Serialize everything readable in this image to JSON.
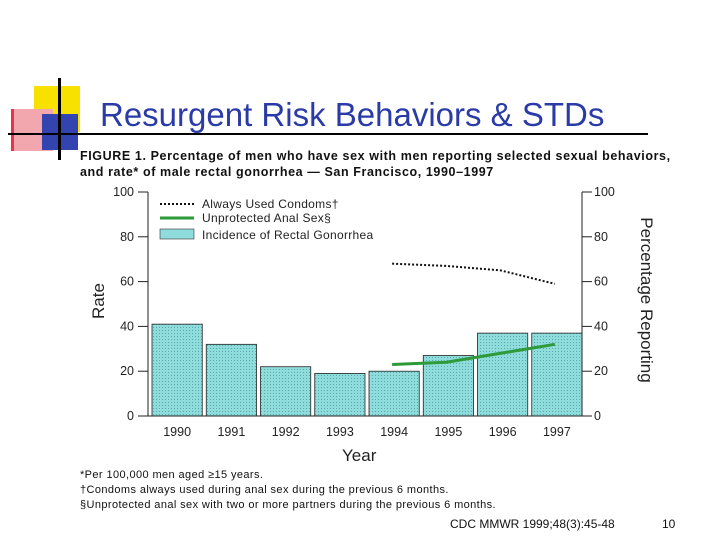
{
  "slide": {
    "title": "Resurgent Risk Behaviors & STDs",
    "source": "CDC MMWR 1999;48(3):45-48",
    "slide_number": "10"
  },
  "figure": {
    "title": "FIGURE 1. Percentage of men who have sex with men reporting selected sexual behaviors, and rate* of male rectal gonorrhea — San Francisco, 1990–1997",
    "footnotes": [
      "*Per 100,000 men aged ≥15 years.",
      "†Condoms always used during anal sex during the previous 6 months.",
      "§Unprotected anal sex with two or more partners during the previous 6 months."
    ]
  },
  "chart_data": {
    "type": "bar",
    "categories": [
      "1990",
      "1991",
      "1992",
      "1993",
      "1994",
      "1995",
      "1996",
      "1997"
    ],
    "xlabel": "Year",
    "ylabel_left": "Rate",
    "ylabel_right": "Percentage Reporting",
    "ylim": [
      0,
      100
    ],
    "yticks": [
      0,
      20,
      40,
      60,
      80,
      100
    ],
    "grid": false,
    "legend_position": "top-left",
    "series": [
      {
        "name": "Incidence of Rectal Gonorrhea",
        "kind": "bar",
        "axis": "left",
        "color": "#8fdcdc",
        "values": [
          41,
          32,
          22,
          19,
          20,
          27,
          37,
          37
        ]
      },
      {
        "name": "Always Used Condoms†",
        "kind": "dotted-line",
        "axis": "right",
        "color": "#111111",
        "x": [
          1994,
          1995,
          1996,
          1997
        ],
        "values": [
          68,
          67,
          65,
          59
        ]
      },
      {
        "name": "Unprotected Anal Sex§",
        "kind": "line",
        "axis": "right",
        "color": "#2e9a3a",
        "x": [
          1994,
          1995,
          1996,
          1997
        ],
        "values": [
          23,
          24,
          28,
          32
        ]
      }
    ]
  }
}
